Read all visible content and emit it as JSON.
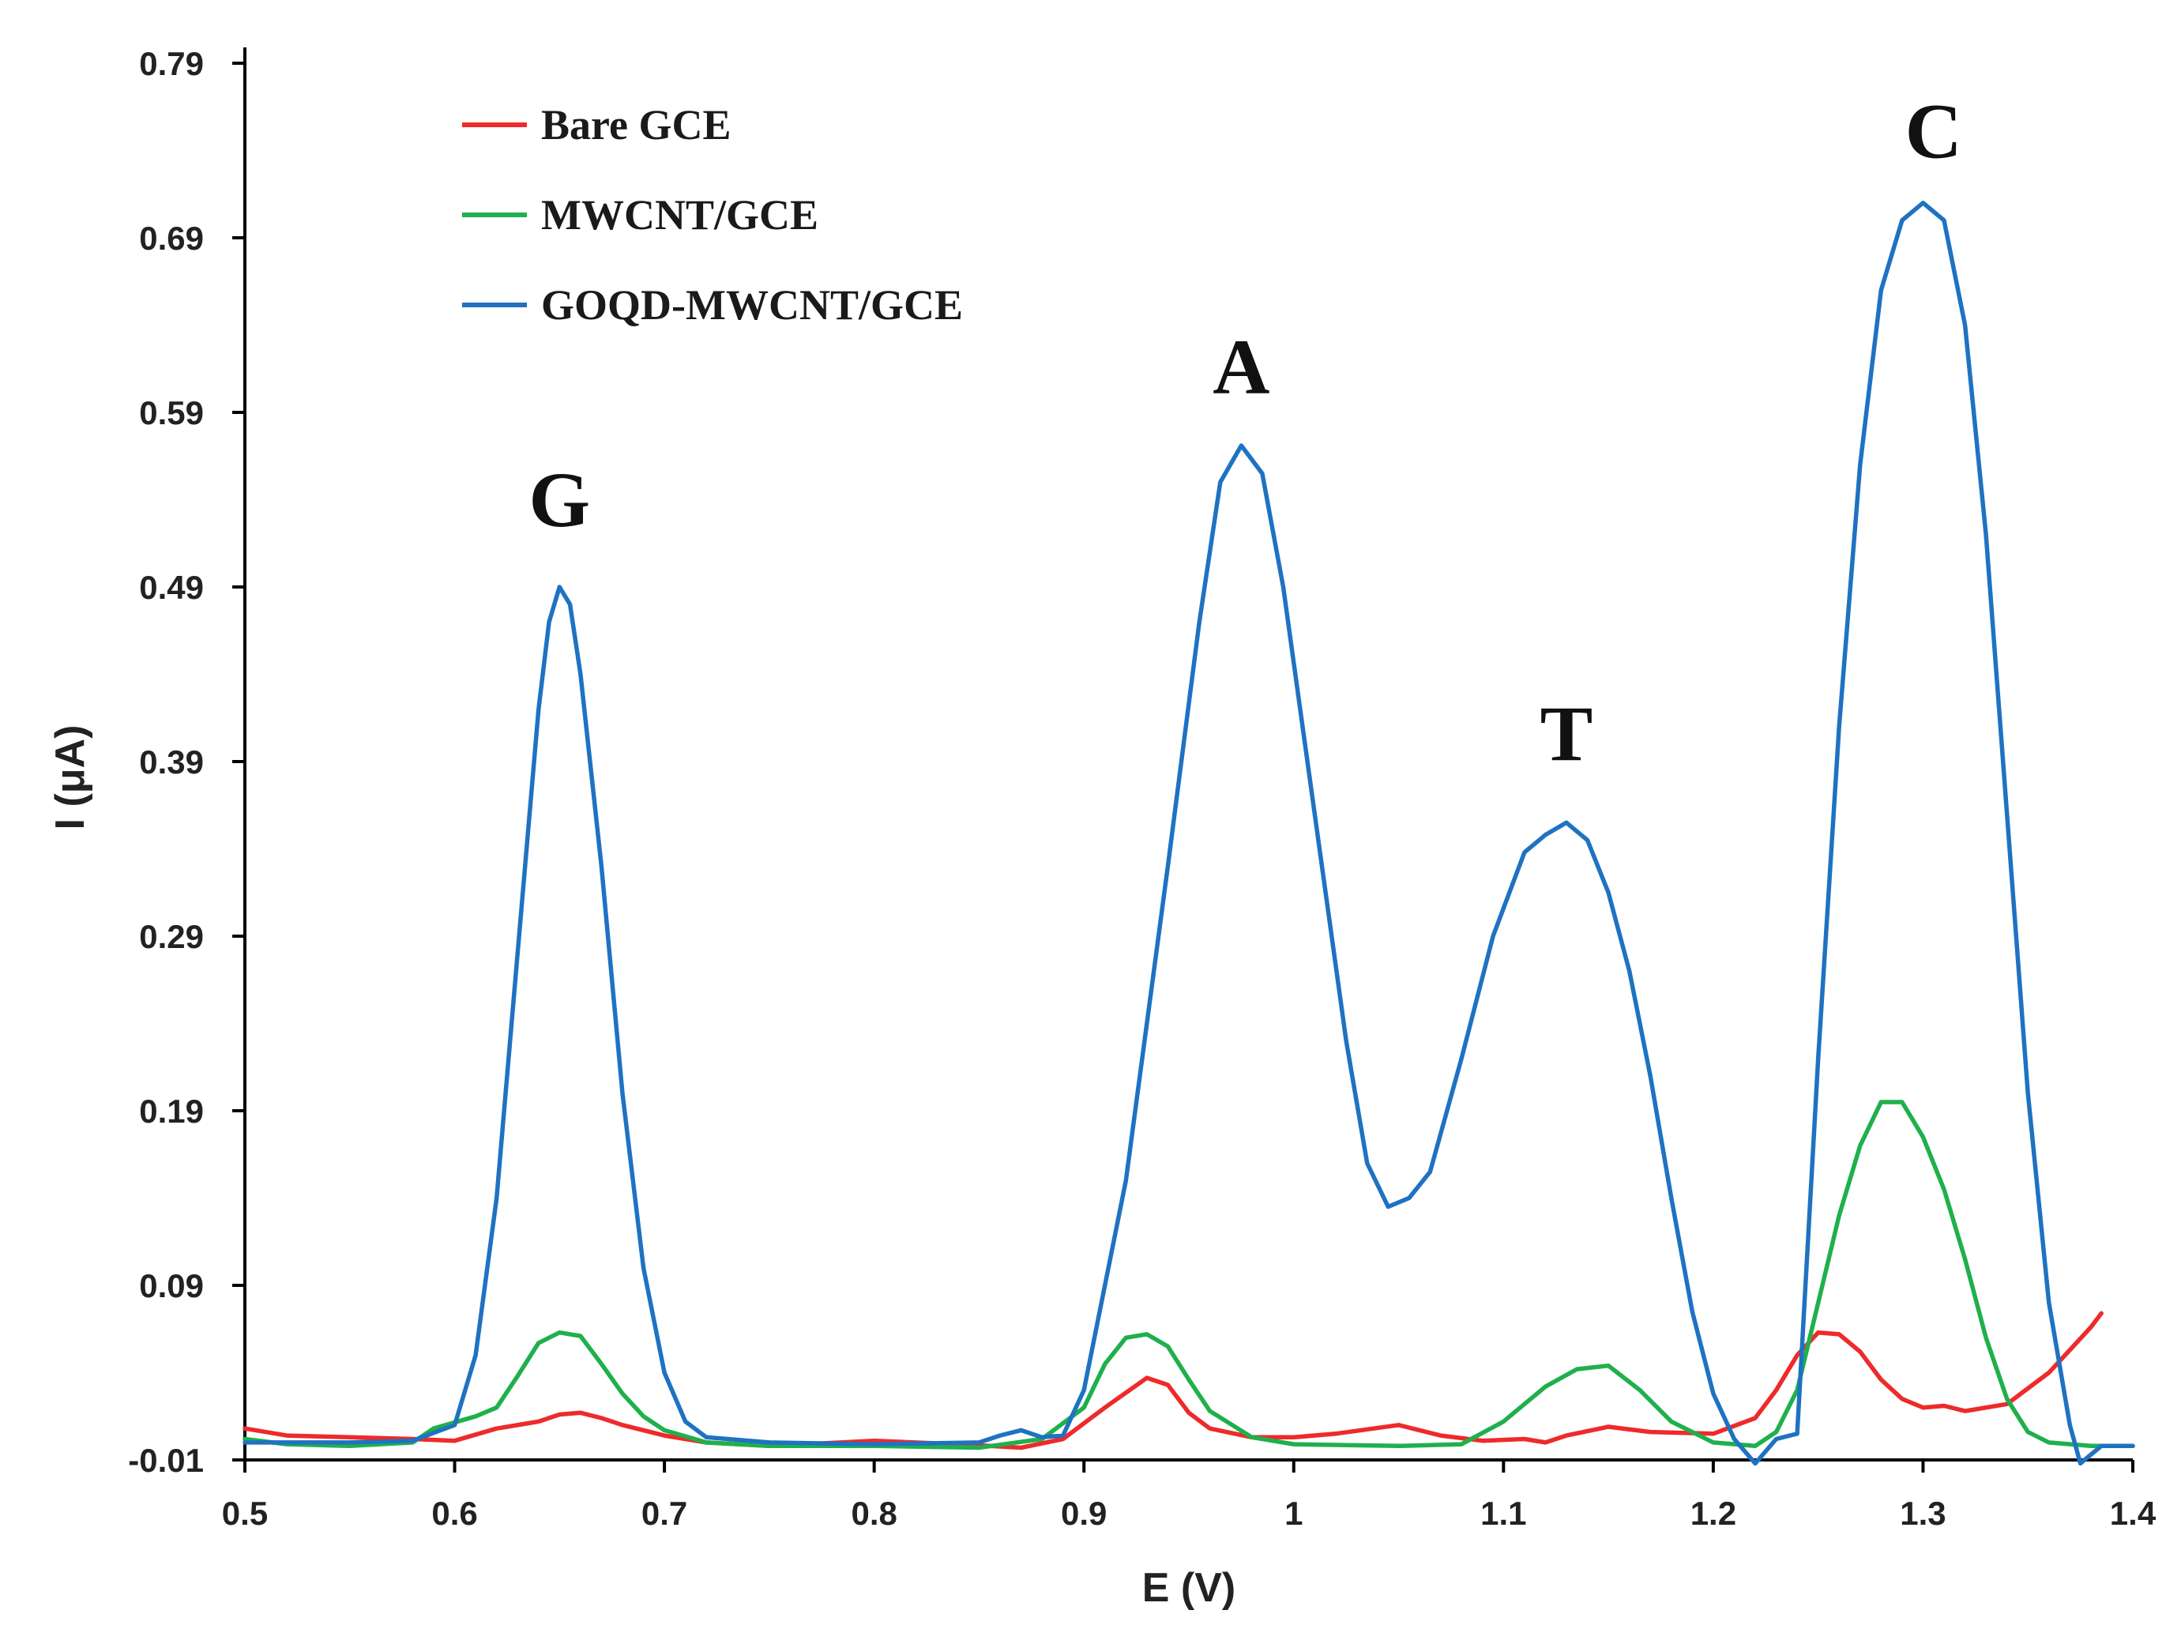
{
  "chart_data": {
    "type": "line",
    "title": "",
    "xlabel": "E (V)",
    "ylabel": "I (μA)",
    "xlim": [
      0.5,
      1.4
    ],
    "ylim": [
      -0.01,
      0.79
    ],
    "x_ticks": [
      "0.5",
      "0.6",
      "0.7",
      "0.8",
      "0.9",
      "1",
      "1.1",
      "1.2",
      "1.3",
      "1.4"
    ],
    "y_ticks": [
      "0.79",
      "0.69",
      "0.59",
      "0.49",
      "0.39",
      "0.29",
      "0.19",
      "0.09",
      "-0.01"
    ],
    "grid": false,
    "legend_position": "top-left",
    "peak_labels": [
      {
        "text": "G",
        "x": 0.65,
        "y": 0.5
      },
      {
        "text": "A",
        "x": 0.975,
        "y": 0.576
      },
      {
        "text": "T",
        "x": 1.13,
        "y": 0.366
      },
      {
        "text": "C",
        "x": 1.305,
        "y": 0.711
      }
    ],
    "series": [
      {
        "name": "Bare GCE",
        "color": "#ee2a2a",
        "points": [
          [
            0.5,
            0.008
          ],
          [
            0.52,
            0.004
          ],
          [
            0.55,
            0.003
          ],
          [
            0.58,
            0.002
          ],
          [
            0.6,
            0.001
          ],
          [
            0.62,
            0.008
          ],
          [
            0.64,
            0.012
          ],
          [
            0.65,
            0.016
          ],
          [
            0.66,
            0.017
          ],
          [
            0.67,
            0.014
          ],
          [
            0.68,
            0.01
          ],
          [
            0.7,
            0.004
          ],
          [
            0.72,
            0.0
          ],
          [
            0.75,
            -0.002
          ],
          [
            0.8,
            0.001
          ],
          [
            0.84,
            -0.001
          ],
          [
            0.87,
            -0.003
          ],
          [
            0.89,
            0.002
          ],
          [
            0.91,
            0.02
          ],
          [
            0.93,
            0.037
          ],
          [
            0.94,
            0.033
          ],
          [
            0.95,
            0.017
          ],
          [
            0.96,
            0.008
          ],
          [
            0.98,
            0.003
          ],
          [
            1.0,
            0.003
          ],
          [
            1.02,
            0.005
          ],
          [
            1.05,
            0.01
          ],
          [
            1.07,
            0.004
          ],
          [
            1.09,
            0.001
          ],
          [
            1.11,
            0.002
          ],
          [
            1.12,
            0.0
          ],
          [
            1.13,
            0.004
          ],
          [
            1.15,
            0.009
          ],
          [
            1.17,
            0.006
          ],
          [
            1.2,
            0.005
          ],
          [
            1.22,
            0.014
          ],
          [
            1.23,
            0.03
          ],
          [
            1.24,
            0.05
          ],
          [
            1.25,
            0.063
          ],
          [
            1.26,
            0.062
          ],
          [
            1.27,
            0.052
          ],
          [
            1.28,
            0.036
          ],
          [
            1.29,
            0.025
          ],
          [
            1.3,
            0.02
          ],
          [
            1.31,
            0.021
          ],
          [
            1.32,
            0.018
          ],
          [
            1.34,
            0.022
          ],
          [
            1.36,
            0.04
          ],
          [
            1.38,
            0.066
          ],
          [
            1.385,
            0.074
          ]
        ]
      },
      {
        "name": "MWCNT/GCE",
        "color": "#1fb04c",
        "points": [
          [
            0.5,
            0.002
          ],
          [
            0.52,
            -0.001
          ],
          [
            0.55,
            -0.002
          ],
          [
            0.58,
            0.0
          ],
          [
            0.59,
            0.008
          ],
          [
            0.61,
            0.015
          ],
          [
            0.62,
            0.02
          ],
          [
            0.63,
            0.038
          ],
          [
            0.64,
            0.057
          ],
          [
            0.65,
            0.063
          ],
          [
            0.66,
            0.061
          ],
          [
            0.67,
            0.045
          ],
          [
            0.68,
            0.028
          ],
          [
            0.69,
            0.015
          ],
          [
            0.7,
            0.007
          ],
          [
            0.72,
            0.0
          ],
          [
            0.75,
            -0.002
          ],
          [
            0.8,
            -0.002
          ],
          [
            0.85,
            -0.003
          ],
          [
            0.88,
            0.002
          ],
          [
            0.9,
            0.02
          ],
          [
            0.91,
            0.045
          ],
          [
            0.92,
            0.06
          ],
          [
            0.93,
            0.062
          ],
          [
            0.94,
            0.055
          ],
          [
            0.95,
            0.036
          ],
          [
            0.96,
            0.018
          ],
          [
            0.98,
            0.003
          ],
          [
            1.0,
            -0.001
          ],
          [
            1.05,
            -0.002
          ],
          [
            1.08,
            -0.001
          ],
          [
            1.1,
            0.012
          ],
          [
            1.12,
            0.032
          ],
          [
            1.135,
            0.042
          ],
          [
            1.15,
            0.044
          ],
          [
            1.165,
            0.03
          ],
          [
            1.18,
            0.012
          ],
          [
            1.2,
            0.0
          ],
          [
            1.22,
            -0.002
          ],
          [
            1.23,
            0.006
          ],
          [
            1.24,
            0.03
          ],
          [
            1.25,
            0.08
          ],
          [
            1.26,
            0.13
          ],
          [
            1.27,
            0.17
          ],
          [
            1.28,
            0.195
          ],
          [
            1.29,
            0.195
          ],
          [
            1.3,
            0.175
          ],
          [
            1.31,
            0.145
          ],
          [
            1.32,
            0.105
          ],
          [
            1.33,
            0.06
          ],
          [
            1.34,
            0.025
          ],
          [
            1.35,
            0.006
          ],
          [
            1.36,
            0.0
          ],
          [
            1.38,
            -0.002
          ],
          [
            1.4,
            -0.002
          ]
        ]
      },
      {
        "name": "GOQD-MWCNT/GCE",
        "color": "#1f72c2",
        "points": [
          [
            0.5,
            0.0
          ],
          [
            0.55,
            0.0
          ],
          [
            0.58,
            0.001
          ],
          [
            0.6,
            0.01
          ],
          [
            0.61,
            0.05
          ],
          [
            0.62,
            0.14
          ],
          [
            0.63,
            0.28
          ],
          [
            0.64,
            0.42
          ],
          [
            0.645,
            0.47
          ],
          [
            0.65,
            0.49
          ],
          [
            0.655,
            0.48
          ],
          [
            0.66,
            0.44
          ],
          [
            0.67,
            0.33
          ],
          [
            0.68,
            0.2
          ],
          [
            0.69,
            0.1
          ],
          [
            0.7,
            0.04
          ],
          [
            0.71,
            0.012
          ],
          [
            0.72,
            0.003
          ],
          [
            0.75,
            0.0
          ],
          [
            0.8,
            -0.001
          ],
          [
            0.85,
            0.0
          ],
          [
            0.86,
            0.004
          ],
          [
            0.87,
            0.007
          ],
          [
            0.88,
            0.003
          ],
          [
            0.89,
            0.004
          ],
          [
            0.9,
            0.03
          ],
          [
            0.92,
            0.15
          ],
          [
            0.94,
            0.33
          ],
          [
            0.955,
            0.47
          ],
          [
            0.965,
            0.55
          ],
          [
            0.975,
            0.571
          ],
          [
            0.985,
            0.555
          ],
          [
            0.995,
            0.49
          ],
          [
            1.01,
            0.36
          ],
          [
            1.025,
            0.23
          ],
          [
            1.035,
            0.16
          ],
          [
            1.045,
            0.135
          ],
          [
            1.055,
            0.14
          ],
          [
            1.065,
            0.155
          ],
          [
            1.08,
            0.22
          ],
          [
            1.095,
            0.29
          ],
          [
            1.11,
            0.338
          ],
          [
            1.12,
            0.348
          ],
          [
            1.13,
            0.355
          ],
          [
            1.14,
            0.345
          ],
          [
            1.15,
            0.315
          ],
          [
            1.16,
            0.27
          ],
          [
            1.17,
            0.21
          ],
          [
            1.18,
            0.14
          ],
          [
            1.19,
            0.075
          ],
          [
            1.2,
            0.028
          ],
          [
            1.21,
            0.002
          ],
          [
            1.22,
            -0.012
          ],
          [
            1.23,
            0.002
          ],
          [
            1.24,
            0.005
          ],
          [
            1.25,
            0.22
          ],
          [
            1.26,
            0.41
          ],
          [
            1.27,
            0.56
          ],
          [
            1.28,
            0.66
          ],
          [
            1.29,
            0.7
          ],
          [
            1.3,
            0.71
          ],
          [
            1.31,
            0.7
          ],
          [
            1.32,
            0.64
          ],
          [
            1.33,
            0.52
          ],
          [
            1.34,
            0.36
          ],
          [
            1.35,
            0.2
          ],
          [
            1.36,
            0.08
          ],
          [
            1.37,
            0.01
          ],
          [
            1.375,
            -0.012
          ],
          [
            1.385,
            -0.002
          ],
          [
            1.4,
            -0.002
          ]
        ]
      }
    ]
  }
}
